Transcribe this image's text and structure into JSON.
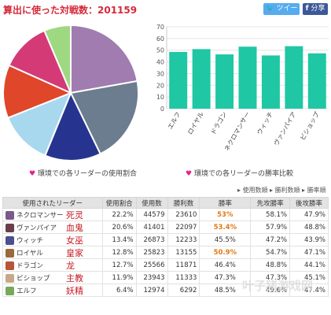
{
  "header": {
    "title": "算出に使った対戦数：201159",
    "tweet_label": "ツイート",
    "share_label": "分享"
  },
  "pie": {
    "caption": "環境での各リーダーの使用割合",
    "slices": [
      {
        "leader": "ネクロマンサー",
        "share": 22.2,
        "color": "#a07cb0"
      },
      {
        "leader": "ヴァンパイア",
        "share": 20.6,
        "color": "#6b7d8e"
      },
      {
        "leader": "ウィッチ",
        "share": 13.4,
        "color": "#27348f"
      },
      {
        "leader": "ロイヤル",
        "share": 12.8,
        "color": "#a8d8ee"
      },
      {
        "leader": "ドラゴン",
        "share": 12.7,
        "color": "#e0462a"
      },
      {
        "leader": "ビショップ",
        "share": 11.9,
        "color": "#d43b76"
      },
      {
        "leader": "エルフ",
        "share": 6.4,
        "color": "#9ed982"
      }
    ]
  },
  "chart_data": {
    "type": "bar",
    "caption": "環境での各リーダーの勝率比較",
    "categories": [
      "エルフ",
      "ロイヤル",
      "ドラゴン",
      "ネクロマンサー",
      "ウィッチ",
      "ヴァンパイア",
      "ビショップ"
    ],
    "values": [
      48.5,
      50.9,
      46.4,
      53.0,
      45.5,
      53.4,
      47.3
    ],
    "ylim": [
      0,
      70
    ],
    "yticks": [
      0,
      10,
      20,
      30,
      40,
      50,
      60,
      70
    ],
    "color": "#1fc7a4",
    "grid": true
  },
  "sort_links": [
    "使用数順",
    "勝利数順",
    "勝率順"
  ],
  "table": {
    "headers": [
      "使用されたリーダー",
      "使用割合",
      "使用数",
      "勝利数",
      "勝率",
      "先攻勝率",
      "後攻勝率"
    ],
    "rows": [
      {
        "leader": "ネクロマンサー",
        "cn": "死灵",
        "rate": "22.2%",
        "uses": "44579",
        "wins": "23610",
        "winrate": "53%",
        "first": "58.1%",
        "second": "47.9%",
        "highlight": true,
        "avatar": "#7a5a8a"
      },
      {
        "leader": "ヴァンパイア",
        "cn": "血鬼",
        "rate": "20.6%",
        "uses": "41401",
        "wins": "22097",
        "winrate": "53.4%",
        "first": "57.9%",
        "second": "48.8%",
        "highlight": true,
        "avatar": "#6a3f4c"
      },
      {
        "leader": "ウィッチ",
        "cn": "女巫",
        "rate": "13.4%",
        "uses": "26873",
        "wins": "12233",
        "winrate": "45.5%",
        "first": "47.2%",
        "second": "43.9%",
        "highlight": false,
        "avatar": "#4a4f8e"
      },
      {
        "leader": "ロイヤル",
        "cn": "皇家",
        "rate": "12.8%",
        "uses": "25823",
        "wins": "13155",
        "winrate": "50.9%",
        "first": "54.7%",
        "second": "47.1%",
        "highlight": true,
        "avatar": "#9a6a3a"
      },
      {
        "leader": "ドラゴン",
        "cn": "龙",
        "rate": "12.7%",
        "uses": "25566",
        "wins": "11871",
        "winrate": "46.4%",
        "first": "48.8%",
        "second": "44.1%",
        "highlight": false,
        "avatar": "#b5553a"
      },
      {
        "leader": "ビショップ",
        "cn": "主教",
        "rate": "11.9%",
        "uses": "23943",
        "wins": "11333",
        "winrate": "47.3%",
        "first": "47.3%",
        "second": "45.1%",
        "highlight": false,
        "avatar": "#c9a88a"
      },
      {
        "leader": "エルフ",
        "cn": "妖精",
        "rate": "6.4%",
        "uses": "12974",
        "wins": "6292",
        "winrate": "48.5%",
        "first": "49.6%",
        "second": "47.4%",
        "highlight": false,
        "avatar": "#7aa85a"
      }
    ]
  },
  "watermark": "叶子猪游戏网"
}
